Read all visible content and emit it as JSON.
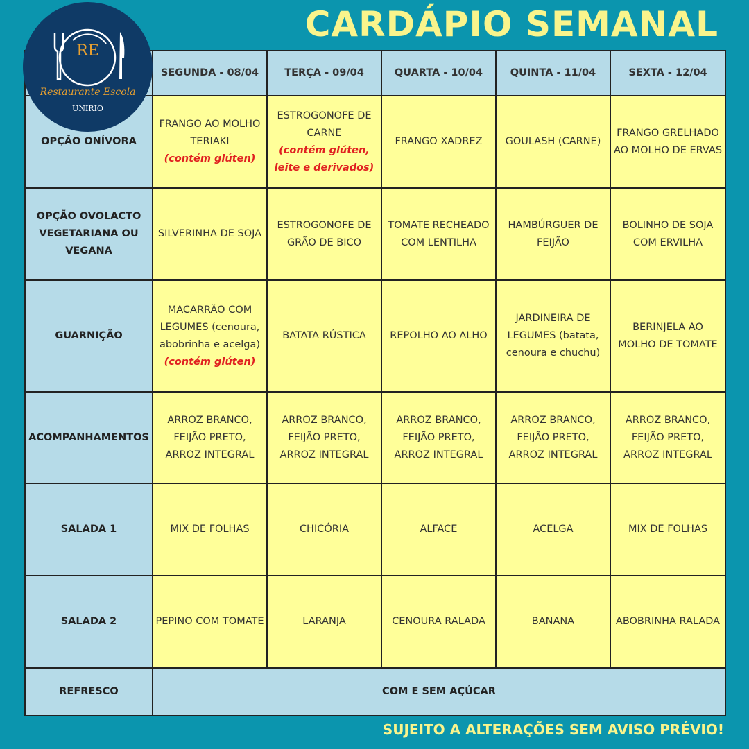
{
  "title": "CARDÁPIO SEMANAL",
  "footer": "SUJEITO A ALTERAÇÕES SEM AVISO PRÉVIO!",
  "logo": {
    "initials": "RE",
    "name": "Restaurante Escola",
    "org": "UNIRIO"
  },
  "colors": {
    "background": "#0b95ae",
    "title": "#f9f48c",
    "header": "#b6dbe8",
    "cell": "#ffff99",
    "note": "#e02020"
  },
  "days": [
    "SEGUNDA - 08/04",
    "TERÇA - 09/04",
    "QUARTA - 10/04",
    "QUINTA - 11/04",
    "SEXTA - 12/04"
  ],
  "rows": [
    {
      "label": "OPÇÃO ONÍVORA",
      "cells": [
        {
          "text": "FRANGO AO MOLHO TERIAKI",
          "note": "(contém glúten)"
        },
        {
          "text": "ESTROGONOFE DE CARNE",
          "note": "(contém glúten, leite e derivados)"
        },
        {
          "text": "FRANGO XADREZ"
        },
        {
          "text": "GOULASH (CARNE)"
        },
        {
          "text": "FRANGO GRELHADO AO MOLHO DE ERVAS"
        }
      ]
    },
    {
      "label": "OPÇÃO OVOLACTO VEGETARIANA OU VEGANA",
      "cells": [
        {
          "text": "SILVERINHA DE SOJA"
        },
        {
          "text": "ESTROGONOFE DE GRÃO DE BICO"
        },
        {
          "text": "TOMATE RECHEADO COM LENTILHA"
        },
        {
          "text": "HAMBÚRGUER DE FEIJÃO"
        },
        {
          "text": "BOLINHO DE SOJA COM ERVILHA"
        }
      ]
    },
    {
      "label": "GUARNIÇÃO",
      "cells": [
        {
          "text": "MACARRÃO COM LEGUMES (cenoura, abobrinha e acelga)",
          "note": "(contém glúten)"
        },
        {
          "text": "BATATA RÚSTICA"
        },
        {
          "text": "REPOLHO AO ALHO"
        },
        {
          "text": "JARDINEIRA DE LEGUMES (batata, cenoura e chuchu)"
        },
        {
          "text": "BERINJELA AO MOLHO DE TOMATE"
        }
      ]
    },
    {
      "label": "ACOMPANHAMENTOS",
      "cells": [
        {
          "text": "ARROZ BRANCO, FEIJÃO PRETO, ARROZ INTEGRAL"
        },
        {
          "text": "ARROZ BRANCO, FEIJÃO PRETO, ARROZ INTEGRAL"
        },
        {
          "text": "ARROZ BRANCO, FEIJÃO PRETO, ARROZ INTEGRAL"
        },
        {
          "text": "ARROZ BRANCO, FEIJÃO PRETO, ARROZ INTEGRAL"
        },
        {
          "text": "ARROZ BRANCO, FEIJÃO PRETO, ARROZ INTEGRAL"
        }
      ]
    },
    {
      "label": "SALADA 1",
      "cells": [
        {
          "text": "MIX DE FOLHAS"
        },
        {
          "text": "CHICÓRIA"
        },
        {
          "text": "ALFACE"
        },
        {
          "text": "ACELGA"
        },
        {
          "text": "MIX DE FOLHAS"
        }
      ]
    },
    {
      "label": "SALADA 2",
      "cells": [
        {
          "text": "PEPINO COM TOMATE"
        },
        {
          "text": "LARANJA"
        },
        {
          "text": "CENOURA RALADA"
        },
        {
          "text": "BANANA"
        },
        {
          "text": "ABOBRINHA RALADA"
        }
      ]
    }
  ],
  "refresco": {
    "label": "REFRESCO",
    "text": "COM E SEM AÇÚCAR"
  }
}
